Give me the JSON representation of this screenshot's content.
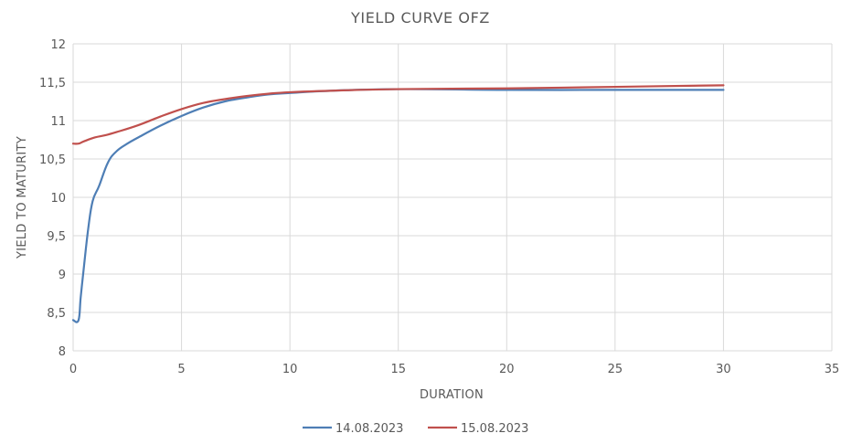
{
  "chart_data": {
    "type": "line",
    "title": "YIELD CURVE OFZ",
    "xlabel": "DURATION",
    "ylabel": "YIELD TO MATURITY",
    "xlim": [
      0,
      35
    ],
    "ylim": [
      8,
      12
    ],
    "x_ticks": [
      0,
      5,
      10,
      15,
      20,
      25,
      30,
      35
    ],
    "x_tick_labels": [
      "0",
      "5",
      "10",
      "15",
      "20",
      "25",
      "30",
      "35"
    ],
    "y_ticks": [
      8,
      8.5,
      9,
      9.5,
      10,
      10.5,
      11,
      11.5,
      12
    ],
    "y_tick_labels": [
      "8",
      "8,5",
      "9",
      "9,5",
      "10",
      "10,5",
      "11",
      "11,5",
      "12"
    ],
    "grid": true,
    "legend_position": "bottom",
    "series": [
      {
        "name": "14.08.2023",
        "color": "#4e7eb5",
        "x": [
          0,
          0.25,
          0.35,
          0.5,
          0.7,
          0.9,
          1.2,
          1.6,
          2.0,
          2.5,
          3.0,
          4.0,
          5.0,
          6.0,
          7.0,
          8.0,
          9.0,
          10.0,
          12.0,
          15.0,
          20.0,
          25.0,
          30.0
        ],
        "y": [
          8.4,
          8.4,
          8.7,
          9.1,
          9.6,
          9.95,
          10.15,
          10.45,
          10.6,
          10.7,
          10.78,
          10.93,
          11.06,
          11.17,
          11.25,
          11.3,
          11.34,
          11.36,
          11.39,
          11.41,
          11.4,
          11.4,
          11.4
        ]
      },
      {
        "name": "15.08.2023",
        "color": "#c0504d",
        "x": [
          0,
          0.25,
          0.5,
          1.0,
          1.5,
          2.0,
          3.0,
          4.0,
          5.0,
          6.0,
          7.0,
          8.0,
          9.0,
          10.0,
          12.0,
          15.0,
          20.0,
          25.0,
          30.0
        ],
        "y": [
          10.7,
          10.7,
          10.73,
          10.78,
          10.81,
          10.85,
          10.94,
          11.05,
          11.15,
          11.23,
          11.28,
          11.32,
          11.35,
          11.37,
          11.39,
          11.41,
          11.42,
          11.44,
          11.46
        ]
      }
    ]
  }
}
